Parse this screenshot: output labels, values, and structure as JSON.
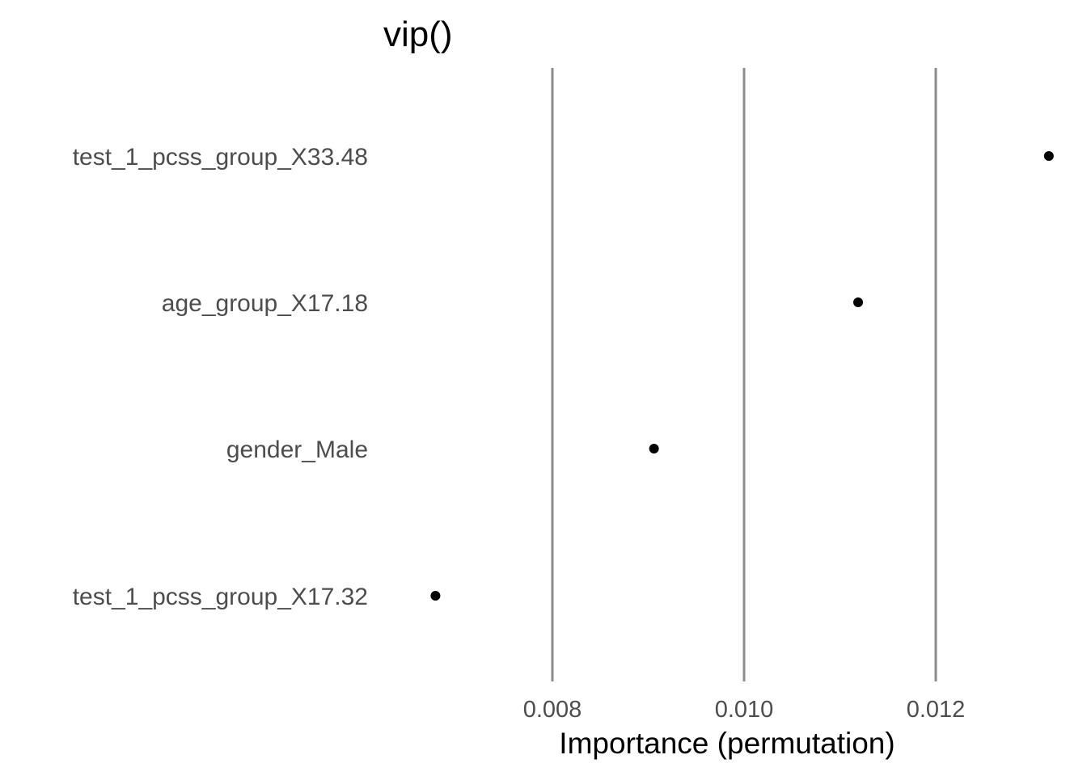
{
  "chart_data": {
    "type": "scatter",
    "title": "vip()",
    "xlabel": "Importance (permutation)",
    "ylabel": "",
    "categories": [
      "test_1_pcss_group_X33.48",
      "age_group_X17.18",
      "gender_Male",
      "test_1_pcss_group_X17.32"
    ],
    "values": [
      0.01318,
      0.01119,
      0.00906,
      0.00678
    ],
    "x_ticks": [
      0.008,
      0.01,
      0.012
    ],
    "x_tick_labels": [
      "0.008",
      "0.010",
      "0.012"
    ],
    "xlim": [
      0.00678,
      0.01318
    ],
    "grid": "vertical major only",
    "legend": "none",
    "colors": {
      "points": "#000000",
      "grid": "#8c8c8c",
      "text": "#4d4d4d"
    }
  }
}
